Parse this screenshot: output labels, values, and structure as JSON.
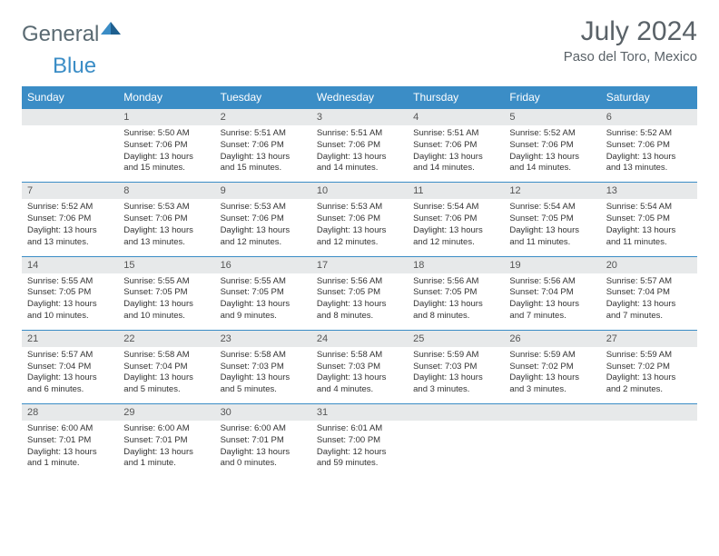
{
  "logo": {
    "general": "General",
    "blue": "Blue"
  },
  "title": "July 2024",
  "location": "Paso del Toro, Mexico",
  "colors": {
    "header_bg": "#3b8dc6",
    "header_text": "#ffffff",
    "daynum_bg": "#e7e9ea",
    "border": "#3b8dc6",
    "title_color": "#5a6268",
    "body_text": "#333333"
  },
  "fonts": {
    "title_size": 30,
    "location_size": 15,
    "dow_size": 12,
    "daynum_size": 11,
    "body_size": 9.5
  },
  "daysOfWeek": [
    "Sunday",
    "Monday",
    "Tuesday",
    "Wednesday",
    "Thursday",
    "Friday",
    "Saturday"
  ],
  "weeks": [
    [
      {
        "n": "",
        "sunrise": "",
        "sunset": "",
        "daylight": ""
      },
      {
        "n": "1",
        "sunrise": "Sunrise: 5:50 AM",
        "sunset": "Sunset: 7:06 PM",
        "daylight": "Daylight: 13 hours and 15 minutes."
      },
      {
        "n": "2",
        "sunrise": "Sunrise: 5:51 AM",
        "sunset": "Sunset: 7:06 PM",
        "daylight": "Daylight: 13 hours and 15 minutes."
      },
      {
        "n": "3",
        "sunrise": "Sunrise: 5:51 AM",
        "sunset": "Sunset: 7:06 PM",
        "daylight": "Daylight: 13 hours and 14 minutes."
      },
      {
        "n": "4",
        "sunrise": "Sunrise: 5:51 AM",
        "sunset": "Sunset: 7:06 PM",
        "daylight": "Daylight: 13 hours and 14 minutes."
      },
      {
        "n": "5",
        "sunrise": "Sunrise: 5:52 AM",
        "sunset": "Sunset: 7:06 PM",
        "daylight": "Daylight: 13 hours and 14 minutes."
      },
      {
        "n": "6",
        "sunrise": "Sunrise: 5:52 AM",
        "sunset": "Sunset: 7:06 PM",
        "daylight": "Daylight: 13 hours and 13 minutes."
      }
    ],
    [
      {
        "n": "7",
        "sunrise": "Sunrise: 5:52 AM",
        "sunset": "Sunset: 7:06 PM",
        "daylight": "Daylight: 13 hours and 13 minutes."
      },
      {
        "n": "8",
        "sunrise": "Sunrise: 5:53 AM",
        "sunset": "Sunset: 7:06 PM",
        "daylight": "Daylight: 13 hours and 13 minutes."
      },
      {
        "n": "9",
        "sunrise": "Sunrise: 5:53 AM",
        "sunset": "Sunset: 7:06 PM",
        "daylight": "Daylight: 13 hours and 12 minutes."
      },
      {
        "n": "10",
        "sunrise": "Sunrise: 5:53 AM",
        "sunset": "Sunset: 7:06 PM",
        "daylight": "Daylight: 13 hours and 12 minutes."
      },
      {
        "n": "11",
        "sunrise": "Sunrise: 5:54 AM",
        "sunset": "Sunset: 7:06 PM",
        "daylight": "Daylight: 13 hours and 12 minutes."
      },
      {
        "n": "12",
        "sunrise": "Sunrise: 5:54 AM",
        "sunset": "Sunset: 7:05 PM",
        "daylight": "Daylight: 13 hours and 11 minutes."
      },
      {
        "n": "13",
        "sunrise": "Sunrise: 5:54 AM",
        "sunset": "Sunset: 7:05 PM",
        "daylight": "Daylight: 13 hours and 11 minutes."
      }
    ],
    [
      {
        "n": "14",
        "sunrise": "Sunrise: 5:55 AM",
        "sunset": "Sunset: 7:05 PM",
        "daylight": "Daylight: 13 hours and 10 minutes."
      },
      {
        "n": "15",
        "sunrise": "Sunrise: 5:55 AM",
        "sunset": "Sunset: 7:05 PM",
        "daylight": "Daylight: 13 hours and 10 minutes."
      },
      {
        "n": "16",
        "sunrise": "Sunrise: 5:55 AM",
        "sunset": "Sunset: 7:05 PM",
        "daylight": "Daylight: 13 hours and 9 minutes."
      },
      {
        "n": "17",
        "sunrise": "Sunrise: 5:56 AM",
        "sunset": "Sunset: 7:05 PM",
        "daylight": "Daylight: 13 hours and 8 minutes."
      },
      {
        "n": "18",
        "sunrise": "Sunrise: 5:56 AM",
        "sunset": "Sunset: 7:05 PM",
        "daylight": "Daylight: 13 hours and 8 minutes."
      },
      {
        "n": "19",
        "sunrise": "Sunrise: 5:56 AM",
        "sunset": "Sunset: 7:04 PM",
        "daylight": "Daylight: 13 hours and 7 minutes."
      },
      {
        "n": "20",
        "sunrise": "Sunrise: 5:57 AM",
        "sunset": "Sunset: 7:04 PM",
        "daylight": "Daylight: 13 hours and 7 minutes."
      }
    ],
    [
      {
        "n": "21",
        "sunrise": "Sunrise: 5:57 AM",
        "sunset": "Sunset: 7:04 PM",
        "daylight": "Daylight: 13 hours and 6 minutes."
      },
      {
        "n": "22",
        "sunrise": "Sunrise: 5:58 AM",
        "sunset": "Sunset: 7:04 PM",
        "daylight": "Daylight: 13 hours and 5 minutes."
      },
      {
        "n": "23",
        "sunrise": "Sunrise: 5:58 AM",
        "sunset": "Sunset: 7:03 PM",
        "daylight": "Daylight: 13 hours and 5 minutes."
      },
      {
        "n": "24",
        "sunrise": "Sunrise: 5:58 AM",
        "sunset": "Sunset: 7:03 PM",
        "daylight": "Daylight: 13 hours and 4 minutes."
      },
      {
        "n": "25",
        "sunrise": "Sunrise: 5:59 AM",
        "sunset": "Sunset: 7:03 PM",
        "daylight": "Daylight: 13 hours and 3 minutes."
      },
      {
        "n": "26",
        "sunrise": "Sunrise: 5:59 AM",
        "sunset": "Sunset: 7:02 PM",
        "daylight": "Daylight: 13 hours and 3 minutes."
      },
      {
        "n": "27",
        "sunrise": "Sunrise: 5:59 AM",
        "sunset": "Sunset: 7:02 PM",
        "daylight": "Daylight: 13 hours and 2 minutes."
      }
    ],
    [
      {
        "n": "28",
        "sunrise": "Sunrise: 6:00 AM",
        "sunset": "Sunset: 7:01 PM",
        "daylight": "Daylight: 13 hours and 1 minute."
      },
      {
        "n": "29",
        "sunrise": "Sunrise: 6:00 AM",
        "sunset": "Sunset: 7:01 PM",
        "daylight": "Daylight: 13 hours and 1 minute."
      },
      {
        "n": "30",
        "sunrise": "Sunrise: 6:00 AM",
        "sunset": "Sunset: 7:01 PM",
        "daylight": "Daylight: 13 hours and 0 minutes."
      },
      {
        "n": "31",
        "sunrise": "Sunrise: 6:01 AM",
        "sunset": "Sunset: 7:00 PM",
        "daylight": "Daylight: 12 hours and 59 minutes."
      },
      {
        "n": "",
        "sunrise": "",
        "sunset": "",
        "daylight": ""
      },
      {
        "n": "",
        "sunrise": "",
        "sunset": "",
        "daylight": ""
      },
      {
        "n": "",
        "sunrise": "",
        "sunset": "",
        "daylight": ""
      }
    ]
  ]
}
